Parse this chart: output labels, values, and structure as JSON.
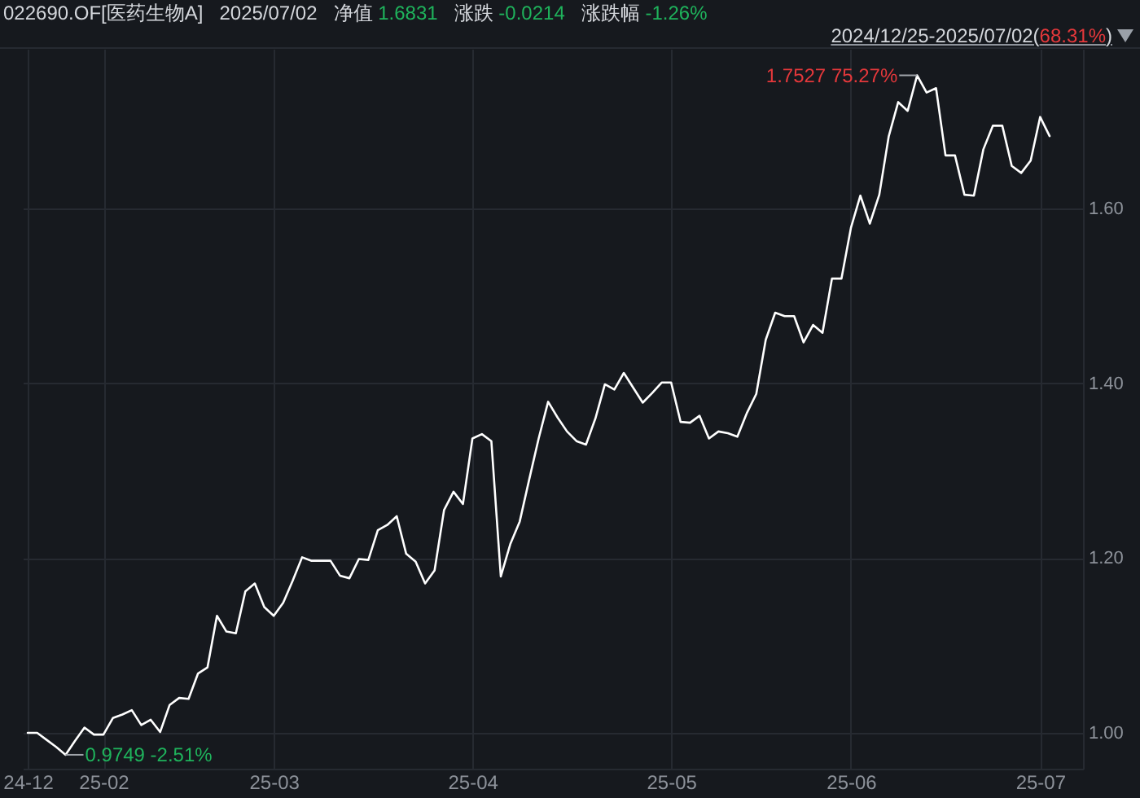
{
  "chart_data": {
    "type": "line",
    "title": "022690.OF[医药生物A]",
    "subtitle": "2024/12/25-2025/07/02(68.31%)",
    "annotations": [
      "2025/07/02",
      "净值 1.6831",
      "涨跌 -0.0214",
      "涨跌幅 -1.26%",
      "1.7527 75.27%",
      "0.9749 -2.51%"
    ],
    "categories": [
      "24-12",
      null,
      null,
      null,
      null,
      null,
      null,
      null,
      "25-02",
      null,
      null,
      null,
      null,
      null,
      null,
      null,
      null,
      null,
      null,
      null,
      null,
      null,
      null,
      null,
      null,
      null,
      "25-03",
      null,
      null,
      null,
      null,
      null,
      null,
      null,
      null,
      null,
      null,
      null,
      null,
      null,
      null,
      null,
      null,
      null,
      null,
      null,
      null,
      "25-04",
      null,
      null,
      null,
      null,
      null,
      null,
      null,
      null,
      null,
      null,
      null,
      null,
      null,
      null,
      null,
      null,
      null,
      null,
      null,
      null,
      "25-05",
      null,
      null,
      null,
      null,
      null,
      null,
      null,
      null,
      null,
      null,
      null,
      null,
      null,
      null,
      null,
      null,
      null,
      null,
      "25-06",
      null,
      null,
      null,
      null,
      null,
      null,
      null,
      null,
      null,
      null,
      null,
      null,
      null,
      null,
      null,
      null,
      null,
      null,
      null,
      "25-07",
      null
    ],
    "series": [
      {
        "color": "#ffffff",
        "values": [
          1.0,
          1.0,
          0.992,
          0.984,
          0.9749,
          0.991,
          1.006,
          0.998,
          0.998,
          1.017,
          1.021,
          1.026,
          1.009,
          1.015,
          1.001,
          1.032,
          1.04,
          1.039,
          1.068,
          1.075,
          1.134,
          1.116,
          1.114,
          1.162,
          1.171,
          1.144,
          1.134,
          1.149,
          1.174,
          1.201,
          1.197,
          1.197,
          1.197,
          1.18,
          1.177,
          1.199,
          1.198,
          1.232,
          1.238,
          1.248,
          1.205,
          1.196,
          1.171,
          1.186,
          1.255,
          1.276,
          1.262,
          1.337,
          1.342,
          1.334,
          1.179,
          1.216,
          1.242,
          1.29,
          1.337,
          1.379,
          1.361,
          1.345,
          1.334,
          1.33,
          1.36,
          1.399,
          1.393,
          1.412,
          1.395,
          1.378,
          1.389,
          1.401,
          1.401,
          1.356,
          1.355,
          1.363,
          1.337,
          1.345,
          1.343,
          1.339,
          1.366,
          1.388,
          1.45,
          1.481,
          1.477,
          1.477,
          1.447,
          1.467,
          1.458,
          1.52,
          1.52,
          1.578,
          1.615,
          1.583,
          1.616,
          1.683,
          1.722,
          1.712,
          1.7527,
          1.733,
          1.738,
          1.661,
          1.661,
          1.616,
          1.615,
          1.668,
          1.695,
          1.695,
          1.649,
          1.641,
          1.655,
          1.705,
          1.6831
        ]
      }
    ],
    "ylim": [
      0.959,
      1.783
    ],
    "yticks": [
      {
        "value": 1,
        "label": "1.00"
      },
      {
        "value": 1.2,
        "label": "1.20"
      },
      {
        "value": 1.4,
        "label": "1.40"
      },
      {
        "value": 1.6,
        "label": "1.60"
      }
    ],
    "grid": true
  }
}
